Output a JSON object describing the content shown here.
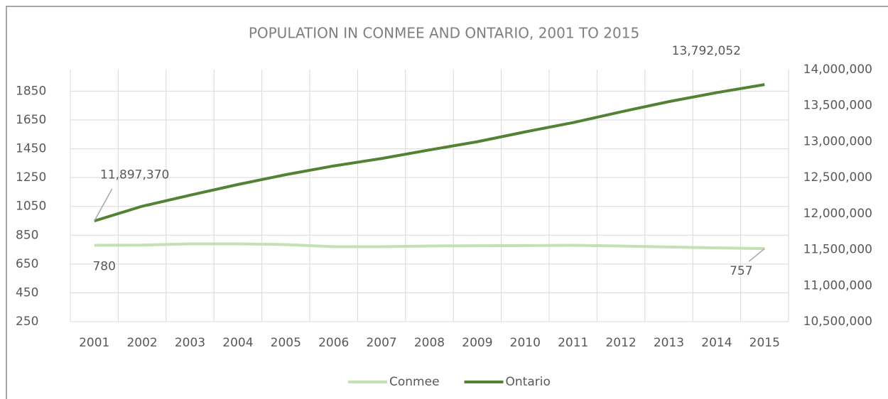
{
  "chart_data": {
    "type": "line",
    "title": "POPULATION IN CONMEE AND ONTARIO, 2001 TO 2015",
    "categories": [
      "2001",
      "2002",
      "2003",
      "2004",
      "2005",
      "2006",
      "2007",
      "2008",
      "2009",
      "2010",
      "2011",
      "2012",
      "2013",
      "2014",
      "2015"
    ],
    "series": [
      {
        "name": "Conmee",
        "color": "#c5e0b4",
        "values": [
          780,
          781,
          790,
          790,
          785,
          770,
          770,
          775,
          777,
          778,
          780,
          775,
          768,
          762,
          757
        ],
        "value_labels": [
          "780",
          null,
          null,
          null,
          null,
          null,
          null,
          null,
          null,
          null,
          null,
          null,
          null,
          null,
          "757"
        ]
      },
      {
        "name": "Ontario",
        "color": "#548235",
        "axis": "y2",
        "values": [
          11897370,
          12102000,
          12256000,
          12404000,
          12541000,
          12662000,
          12765000,
          12884000,
          12998000,
          13135000,
          13264000,
          13413000,
          13555000,
          13680000,
          13792052
        ],
        "value_labels": [
          "11,897,370",
          null,
          null,
          null,
          null,
          null,
          null,
          null,
          null,
          null,
          null,
          null,
          null,
          null,
          "13,792,052"
        ]
      }
    ],
    "ylim": [
      250,
      2000
    ],
    "yticks": [
      250,
      450,
      650,
      850,
      1050,
      1250,
      1450,
      1650,
      1850
    ],
    "y2lim": [
      10500000,
      14000000
    ],
    "y2ticks": [
      {
        "value": 10500000,
        "label": "10,500,000"
      },
      {
        "value": 11000000,
        "label": "11,000,000"
      },
      {
        "value": 11500000,
        "label": "11,500,000"
      },
      {
        "value": 12000000,
        "label": "12,000,000"
      },
      {
        "value": 12500000,
        "label": "12,500,000"
      },
      {
        "value": 13000000,
        "label": "13,000,000"
      },
      {
        "value": 13500000,
        "label": "13,500,000"
      },
      {
        "value": 14000000,
        "label": "14,000,000"
      }
    ],
    "grid": true,
    "legend": "bottom"
  }
}
